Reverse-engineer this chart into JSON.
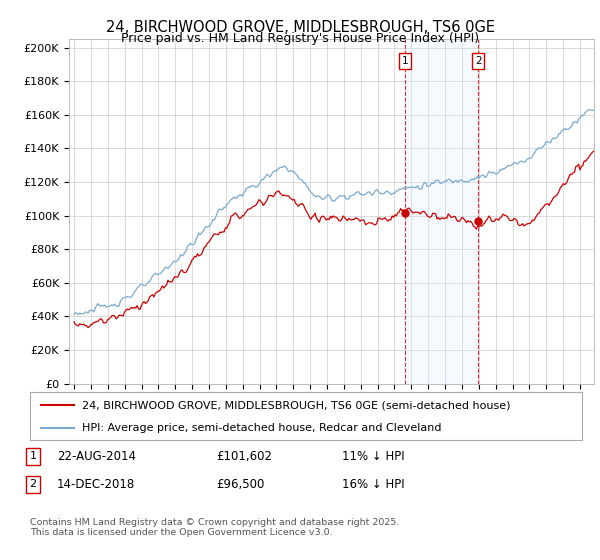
{
  "title1": "24, BIRCHWOOD GROVE, MIDDLESBROUGH, TS6 0GE",
  "title2": "Price paid vs. HM Land Registry's House Price Index (HPI)",
  "ylabel_ticks": [
    "£0",
    "£20K",
    "£40K",
    "£60K",
    "£80K",
    "£100K",
    "£120K",
    "£140K",
    "£160K",
    "£180K",
    "£200K"
  ],
  "ytick_values": [
    0,
    20000,
    40000,
    60000,
    80000,
    100000,
    120000,
    140000,
    160000,
    180000,
    200000
  ],
  "ylim": [
    0,
    205000
  ],
  "xlim_start": 1995.0,
  "xlim_end": 2025.83,
  "xticks": [
    1995,
    1996,
    1997,
    1998,
    1999,
    2000,
    2001,
    2002,
    2003,
    2004,
    2005,
    2006,
    2007,
    2008,
    2009,
    2010,
    2011,
    2012,
    2013,
    2014,
    2015,
    2016,
    2017,
    2018,
    2019,
    2020,
    2021,
    2022,
    2023,
    2024,
    2025
  ],
  "red_line_color": "#cc0000",
  "blue_line_color": "#7aabcf",
  "shade_color": "#ddeeff",
  "grid_color": "#cccccc",
  "background_color": "#ffffff",
  "marker1_x": 2014.63,
  "marker1_y": 101602,
  "marker2_x": 2018.96,
  "marker2_y": 96500,
  "marker1_label": "1",
  "marker2_label": "2",
  "marker1_date": "22-AUG-2014",
  "marker1_price": "£101,602",
  "marker1_hpi": "11% ↓ HPI",
  "marker2_date": "14-DEC-2018",
  "marker2_price": "£96,500",
  "marker2_hpi": "16% ↓ HPI",
  "legend_line1": "24, BIRCHWOOD GROVE, MIDDLESBROUGH, TS6 0GE (semi-detached house)",
  "legend_line2": "HPI: Average price, semi-detached house, Redcar and Cleveland",
  "footnote": "Contains HM Land Registry data © Crown copyright and database right 2025.\nThis data is licensed under the Open Government Licence v3.0.",
  "title_fontsize": 10.5,
  "axis_fontsize": 8,
  "legend_fontsize": 8
}
